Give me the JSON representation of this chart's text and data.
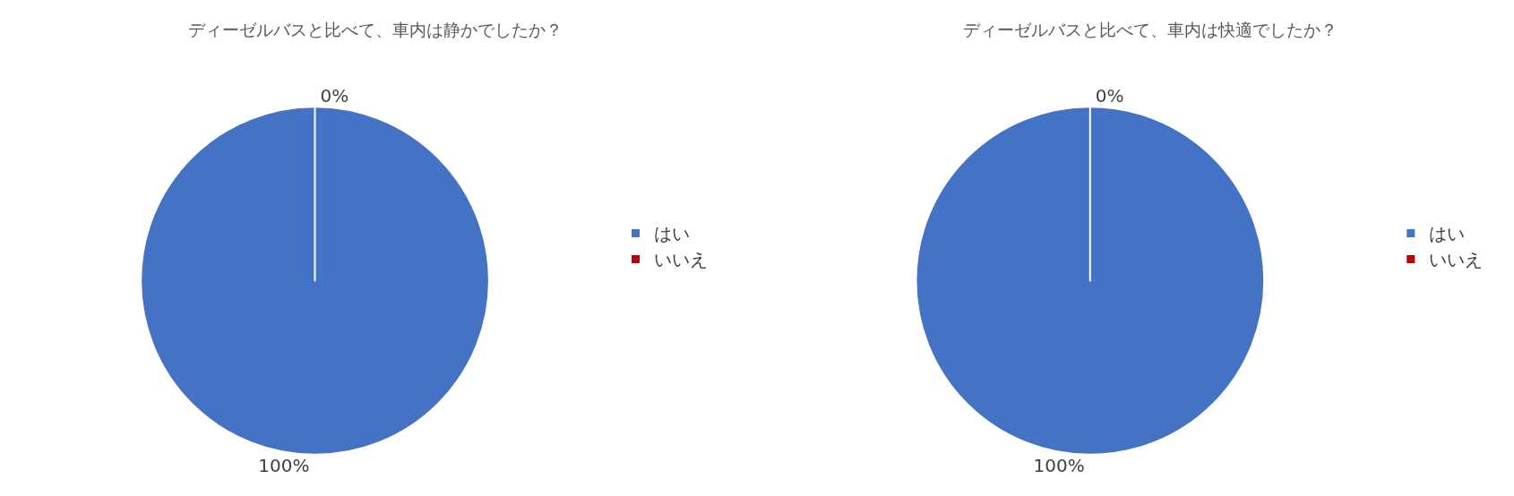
{
  "chart_data": [
    {
      "type": "pie",
      "title": "ディーゼルバスと比べて、車内は静かでしたか？",
      "categories": [
        "はい",
        "いいえ"
      ],
      "values": [
        100,
        0
      ],
      "colors": [
        "#4472c4",
        "#c00000"
      ],
      "value_labels": [
        "100%",
        "0%"
      ],
      "legend": "right"
    },
    {
      "type": "pie",
      "title": "ディーゼルバスと比べて、車内は快適でしたか？",
      "categories": [
        "はい",
        "いいえ"
      ],
      "values": [
        100,
        0
      ],
      "colors": [
        "#4472c4",
        "#c00000"
      ],
      "value_labels": [
        "100%",
        "0%"
      ],
      "legend": "right"
    }
  ]
}
